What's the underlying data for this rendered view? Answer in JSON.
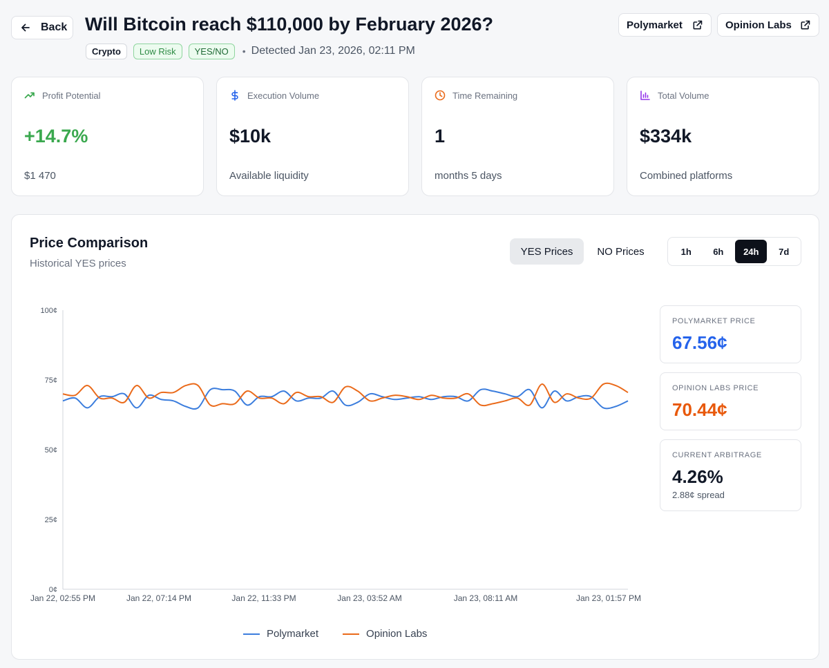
{
  "header": {
    "back_label": "Back",
    "title": "Will Bitcoin reach $110,000 by February 2026?",
    "tags": [
      "Crypto",
      "Low Risk",
      "YES/NO"
    ],
    "separator": "•",
    "detected": "Detected Jan 23, 2026, 02:11 PM",
    "external_links": [
      {
        "label": "Polymarket",
        "icon": "external-link-icon"
      },
      {
        "label": "Opinion Labs",
        "icon": "external-link-icon"
      }
    ]
  },
  "stats": [
    {
      "label": "Profit Potential",
      "icon": "trending-up-icon",
      "value": "+14.7%",
      "sub": "$1 470",
      "icon_color": "#3aa84e"
    },
    {
      "label": "Execution Volume",
      "icon": "dollar-icon",
      "value": "$10k",
      "sub": "Available liquidity",
      "icon_color": "#2563eb"
    },
    {
      "label": "Time Remaining",
      "icon": "clock-icon",
      "value": "1",
      "sub": "months 5 days",
      "icon_color": "#ea6a1a"
    },
    {
      "label": "Total Volume",
      "icon": "bar-chart-icon",
      "value": "$334k",
      "sub": "Combined platforms",
      "icon_color": "#9333ea"
    }
  ],
  "price_panel": {
    "title": "Price Comparison",
    "subtitle": "Historical YES prices",
    "toggle": [
      "YES Prices",
      "NO Prices"
    ],
    "toggle_selected": "YES Prices",
    "ranges": [
      "1h",
      "6h",
      "24h",
      "7d"
    ],
    "range_selected": "24h"
  },
  "summary": {
    "polymarket": {
      "label": "POLYMARKET PRICE",
      "value": "67.56¢",
      "color": "#2563eb"
    },
    "opinion": {
      "label": "OPINION LABS PRICE",
      "value": "70.44¢",
      "color": "#e8590c"
    },
    "arbitrage": {
      "label": "CURRENT ARBITRAGE",
      "value": "4.26%",
      "sub": "2.88¢ spread"
    }
  },
  "chart_data": {
    "type": "line",
    "ylim": [
      0,
      100
    ],
    "y_ticks": [
      "100¢",
      "75¢",
      "50¢",
      "25¢",
      "0¢"
    ],
    "x_ticks": [
      "Jan 22, 02:55 PM",
      "Jan 22, 07:14 PM",
      "Jan 22, 11:33 PM",
      "Jan 23, 03:52 AM",
      "Jan 23, 08:11 AM",
      "Jan 23, 01:57 PM"
    ],
    "legend_position": "bottom",
    "grid": false,
    "series": [
      {
        "name": "Polymarket",
        "color": "#3b7ddd",
        "values": [
          67.5,
          68.5,
          65,
          69,
          69,
          70,
          65,
          69.5,
          68,
          67.5,
          65.5,
          65,
          71.5,
          71.5,
          71,
          66,
          69,
          69,
          71,
          67.5,
          68.5,
          68.5,
          71,
          66,
          67,
          70,
          69,
          68,
          68.5,
          69,
          68,
          69,
          69,
          67.5,
          71.5,
          71,
          70,
          69,
          71.5,
          65,
          71,
          67.5,
          69,
          69,
          65,
          65.5,
          67.5
        ]
      },
      {
        "name": "Opinion Labs",
        "color": "#ea6a1a",
        "values": [
          70,
          69.5,
          73,
          68.5,
          68.5,
          67,
          73,
          68.5,
          70.5,
          70.5,
          73,
          73,
          66,
          66.5,
          66.5,
          71,
          68.5,
          68.5,
          66.5,
          70.5,
          69,
          69,
          67,
          72.5,
          71,
          67.5,
          68.5,
          69.5,
          69,
          68,
          69.5,
          68.5,
          68.5,
          70,
          66,
          66.5,
          67.5,
          68.5,
          66,
          73.5,
          67,
          70,
          68.5,
          68.5,
          73.5,
          73,
          70.5
        ]
      }
    ]
  }
}
